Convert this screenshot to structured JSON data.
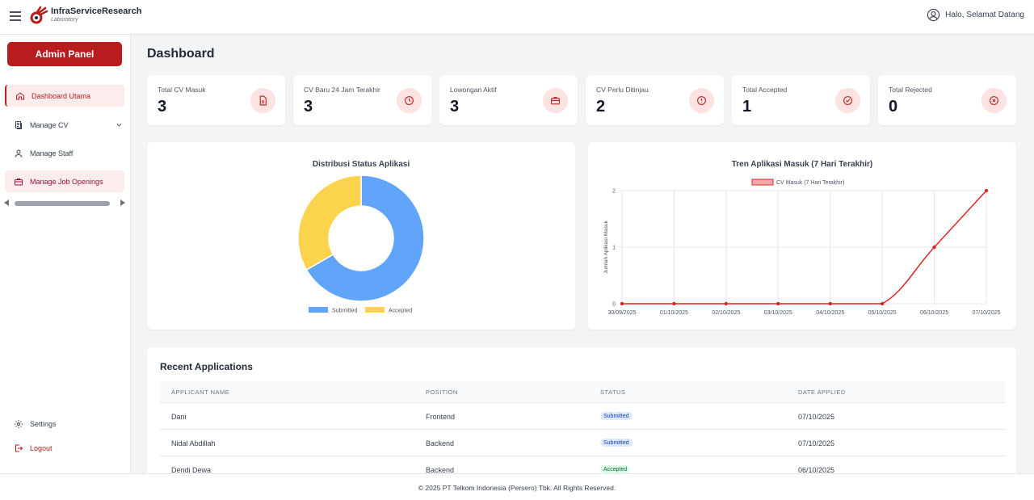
{
  "app": {
    "brand_title": "InfraServiceResearch",
    "brand_sub": "Laboratory",
    "greeting": "Halo, Selamat Datang"
  },
  "sidebar": {
    "admin_label": "Admin Panel",
    "items": [
      {
        "label": "Dashboard Utama",
        "icon": "home-icon"
      },
      {
        "label": "Manage CV",
        "icon": "document-icon"
      },
      {
        "label": "Manage Staff",
        "icon": "user-icon"
      },
      {
        "label": "Manage Job Openings",
        "icon": "briefcase-icon"
      }
    ],
    "settings_label": "Settings",
    "logout_label": "Logout"
  },
  "page": {
    "title": "Dashboard"
  },
  "stats": [
    {
      "label": "Total CV Masuk",
      "value": "3",
      "icon": "file-icon"
    },
    {
      "label": "CV Baru 24 Jam Terakhir",
      "value": "3",
      "icon": "clock-icon"
    },
    {
      "label": "Lowongan Aktif",
      "value": "3",
      "icon": "briefcase-icon"
    },
    {
      "label": "CV Perlu Ditinjau",
      "value": "2",
      "icon": "alert-icon"
    },
    {
      "label": "Total Accepted",
      "value": "1",
      "icon": "check-circle-icon"
    },
    {
      "label": "Total Rejected",
      "value": "0",
      "icon": "x-circle-icon"
    }
  ],
  "chart_data": [
    {
      "type": "pie",
      "title": "Distribusi Status Aplikasi",
      "categories": [
        "Submitted",
        "Accepted"
      ],
      "values": [
        2,
        1
      ],
      "colors": [
        "#60a5fa",
        "#fcd34d"
      ],
      "donut": true,
      "legend": "bottom"
    },
    {
      "type": "line",
      "title": "Tren Aplikasi Masuk (7 Hari Terakhir)",
      "x": [
        "30/09/2025",
        "01/10/2025",
        "02/10/2025",
        "03/10/2025",
        "04/10/2025",
        "05/10/2025",
        "06/10/2025",
        "07/10/2025"
      ],
      "series": [
        {
          "name": "CV Masuk (7 Hari Terakhir)",
          "values": [
            0,
            0,
            0,
            0,
            0,
            0,
            1,
            2
          ],
          "color": "#dc2626"
        }
      ],
      "ylabel": "Jumlah Aplikasi Masuk",
      "yticks": [
        "0",
        "1",
        "2"
      ],
      "ylim": [
        0,
        2
      ],
      "grid": true,
      "legend": "top"
    }
  ],
  "recent": {
    "title": "Recent Applications",
    "columns": [
      "APPLICANT NAME",
      "POSITION",
      "STATUS",
      "DATE APPLIED"
    ],
    "rows": [
      {
        "name": "Dani",
        "position": "Frontend",
        "status": "Submitted",
        "date": "07/10/2025"
      },
      {
        "name": "Nidal Abdillah",
        "position": "Backend",
        "status": "Submitted",
        "date": "07/10/2025"
      },
      {
        "name": "Dendi Dewa",
        "position": "Backend",
        "status": "Accepted",
        "date": "06/10/2025"
      }
    ]
  },
  "colors": {
    "brand": "#b91c1c",
    "submitted_bg": "#dbeafe",
    "submitted_fg": "#1e40af",
    "accepted_bg": "#dcfce7",
    "accepted_fg": "#166534"
  },
  "footer": {
    "text": "© 2025 PT Telkom Indonesia (Persero) Tbk. All Rights Reserved."
  }
}
